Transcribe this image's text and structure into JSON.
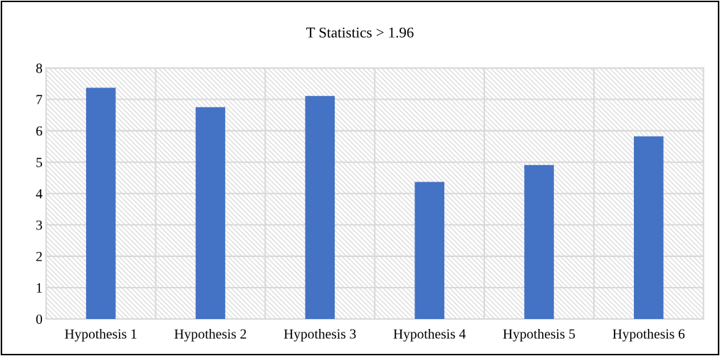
{
  "chart_data": {
    "type": "bar",
    "title": "T Statistics > 1.96",
    "categories": [
      "Hypothesis 1",
      "Hypothesis 2",
      "Hypothesis 3",
      "Hypothesis 4",
      "Hypothesis 5",
      "Hypothesis 6"
    ],
    "values": [
      7.37,
      6.75,
      7.11,
      4.37,
      4.91,
      5.82
    ],
    "color": "#4472c4",
    "ylim": [
      0,
      8
    ],
    "yticks": [
      0,
      1,
      2,
      3,
      4,
      5,
      6,
      7,
      8
    ],
    "grid": true,
    "legend": false
  }
}
